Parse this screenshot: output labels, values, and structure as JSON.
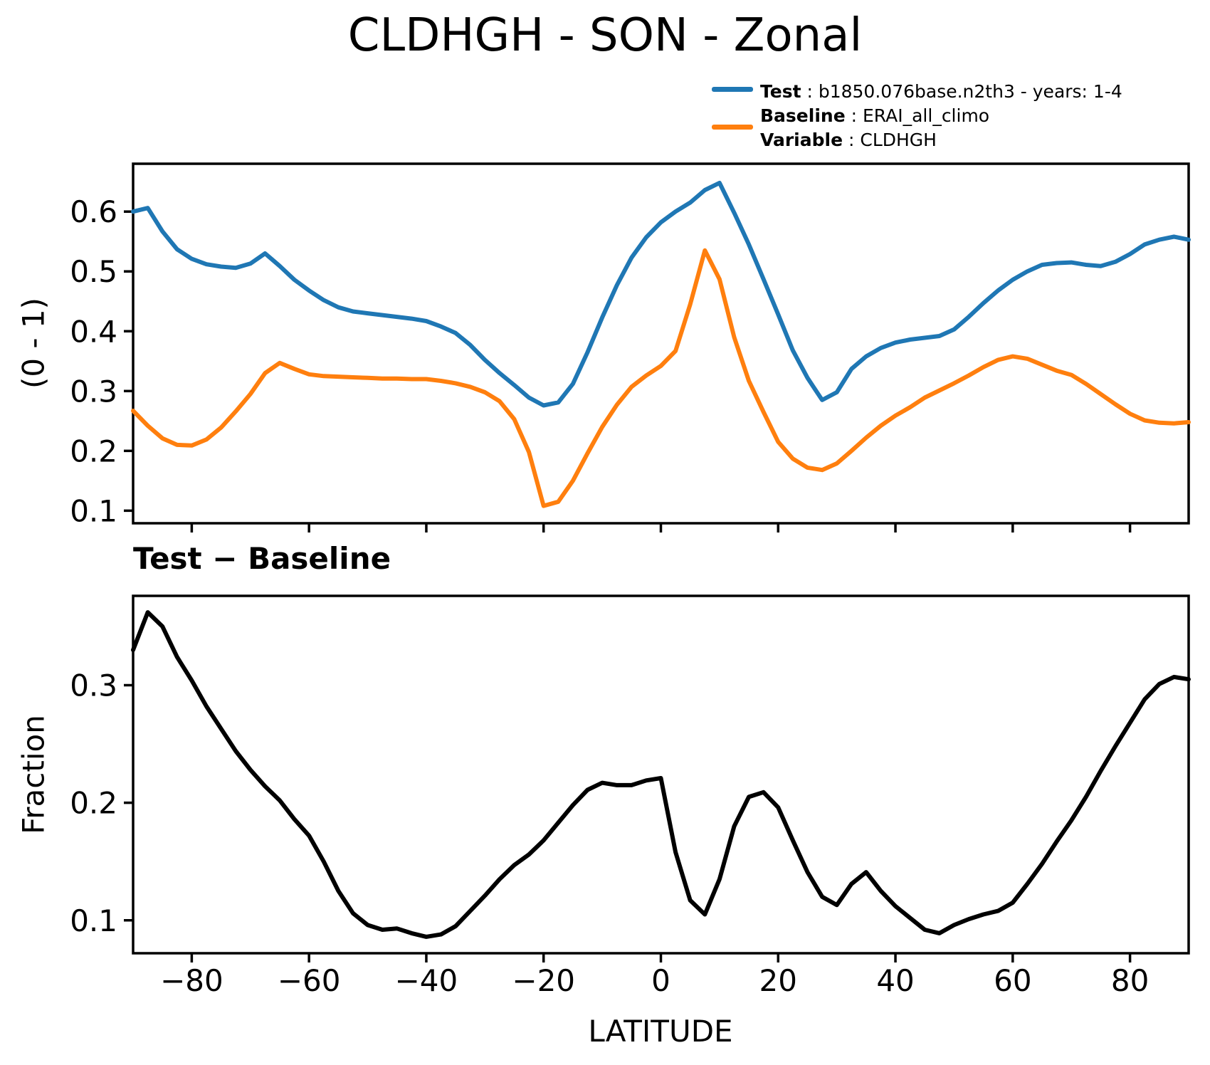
{
  "title": "CLDHGH - SON - Zonal",
  "subtitle": "Test − Baseline",
  "colors": {
    "test": "#1f77b4",
    "baseline": "#ff7f0e",
    "diff": "#000000",
    "axis": "#000000"
  },
  "legend": {
    "test_label": "Test",
    "test_value": " : b1850.076base.n2th3 - years: 1-4",
    "baseline_label": "Baseline",
    "baseline_value": " : ERAI_all_climo",
    "variable_label": "Variable",
    "variable_value": " : CLDHGH"
  },
  "axes": {
    "xlabel": "LATITUDE",
    "ylabel_top": "(0 - 1)",
    "ylabel_bottom": "Fraction"
  },
  "chart_data": [
    {
      "type": "line",
      "title": "CLDHGH - SON - Zonal",
      "xlabel": "",
      "ylabel": "(0 - 1)",
      "xlim": [
        -90,
        90
      ],
      "ylim": [
        0.079,
        0.68
      ],
      "grid": false,
      "legend_position": "upper right, outside axes",
      "xticks": [
        -80,
        -60,
        -40,
        -20,
        0,
        20,
        40,
        60,
        80
      ],
      "xtick_labels": [],
      "yticks": [
        0.1,
        0.2,
        0.3,
        0.4,
        0.5,
        0.6
      ],
      "ytick_labels": [
        "0.1",
        "0.2",
        "0.3",
        "0.4",
        "0.5",
        "0.6"
      ],
      "x": [
        -90,
        -87.5,
        -85,
        -82.5,
        -80,
        -77.5,
        -75,
        -72.5,
        -70,
        -67.5,
        -65,
        -62.5,
        -60,
        -57.5,
        -55,
        -52.5,
        -50,
        -47.5,
        -45,
        -42.5,
        -40,
        -37.5,
        -35,
        -32.5,
        -30,
        -27.5,
        -25,
        -22.5,
        -20,
        -17.5,
        -15,
        -12.5,
        -10,
        -7.5,
        -5,
        -2.5,
        0,
        2.5,
        5,
        7.5,
        10,
        12.5,
        15,
        17.5,
        20,
        22.5,
        25,
        27.5,
        30,
        32.5,
        35,
        37.5,
        40,
        42.5,
        45,
        47.5,
        50,
        52.5,
        55,
        57.5,
        60,
        62.5,
        65,
        67.5,
        70,
        72.5,
        75,
        77.5,
        80,
        82.5,
        85,
        87.5,
        90
      ],
      "series": [
        {
          "name": "Test : b1850.076base.n2th3 - years: 1-4",
          "color": "#1f77b4",
          "values": [
            0.6,
            0.606,
            0.567,
            0.537,
            0.521,
            0.512,
            0.508,
            0.506,
            0.513,
            0.53,
            0.509,
            0.486,
            0.468,
            0.452,
            0.44,
            0.433,
            0.43,
            0.427,
            0.424,
            0.421,
            0.417,
            0.408,
            0.397,
            0.377,
            0.352,
            0.33,
            0.31,
            0.289,
            0.276,
            0.281,
            0.312,
            0.365,
            0.423,
            0.477,
            0.523,
            0.557,
            0.582,
            0.6,
            0.615,
            0.636,
            0.648,
            0.598,
            0.545,
            0.487,
            0.428,
            0.368,
            0.322,
            0.285,
            0.298,
            0.337,
            0.358,
            0.372,
            0.381,
            0.386,
            0.389,
            0.392,
            0.403,
            0.424,
            0.447,
            0.468,
            0.486,
            0.5,
            0.511,
            0.514,
            0.515,
            0.511,
            0.509,
            0.516,
            0.529,
            0.545,
            0.553,
            0.558,
            0.553
          ]
        },
        {
          "name": "Baseline : ERAI_all_climo",
          "color": "#ff7f0e",
          "values": [
            0.267,
            0.242,
            0.221,
            0.21,
            0.209,
            0.219,
            0.239,
            0.266,
            0.295,
            0.33,
            0.347,
            0.337,
            0.328,
            0.325,
            0.324,
            0.323,
            0.322,
            0.321,
            0.321,
            0.32,
            0.32,
            0.317,
            0.313,
            0.307,
            0.298,
            0.283,
            0.253,
            0.198,
            0.108,
            0.115,
            0.15,
            0.196,
            0.24,
            0.277,
            0.307,
            0.326,
            0.342,
            0.367,
            0.445,
            0.535,
            0.487,
            0.39,
            0.317,
            0.265,
            0.215,
            0.187,
            0.172,
            0.168,
            0.179,
            0.2,
            0.222,
            0.242,
            0.259,
            0.273,
            0.289,
            0.301,
            0.313,
            0.326,
            0.34,
            0.352,
            0.358,
            0.354,
            0.344,
            0.334,
            0.327,
            0.312,
            0.295,
            0.278,
            0.262,
            0.251,
            0.247,
            0.246,
            0.248
          ]
        }
      ]
    },
    {
      "type": "line",
      "title": "Test − Baseline",
      "xlabel": "LATITUDE",
      "ylabel": "Fraction",
      "xlim": [
        -90,
        90
      ],
      "ylim": [
        0.072,
        0.376
      ],
      "grid": false,
      "xticks": [
        -80,
        -60,
        -40,
        -20,
        0,
        20,
        40,
        60,
        80
      ],
      "xtick_labels": [
        "−80",
        "−60",
        "−40",
        "−20",
        "0",
        "20",
        "40",
        "60",
        "80"
      ],
      "yticks": [
        0.1,
        0.2,
        0.3
      ],
      "ytick_labels": [
        "0.1",
        "0.2",
        "0.3"
      ],
      "x": [
        -90,
        -87.5,
        -85,
        -82.5,
        -80,
        -77.5,
        -75,
        -72.5,
        -70,
        -67.5,
        -65,
        -62.5,
        -60,
        -57.5,
        -55,
        -52.5,
        -50,
        -47.5,
        -45,
        -42.5,
        -40,
        -37.5,
        -35,
        -32.5,
        -30,
        -27.5,
        -25,
        -22.5,
        -20,
        -17.5,
        -15,
        -12.5,
        -10,
        -7.5,
        -5,
        -2.5,
        0,
        2.5,
        5,
        7.5,
        10,
        12.5,
        15,
        17.5,
        20,
        22.5,
        25,
        27.5,
        30,
        32.5,
        35,
        37.5,
        40,
        42.5,
        45,
        47.5,
        50,
        52.5,
        55,
        57.5,
        60,
        62.5,
        65,
        67.5,
        70,
        72.5,
        75,
        77.5,
        80,
        82.5,
        85,
        87.5,
        90
      ],
      "series": [
        {
          "name": "Test − Baseline",
          "color": "#000000",
          "values": [
            0.33,
            0.362,
            0.35,
            0.324,
            0.304,
            0.282,
            0.263,
            0.244,
            0.228,
            0.214,
            0.202,
            0.186,
            0.172,
            0.15,
            0.125,
            0.106,
            0.096,
            0.092,
            0.093,
            0.089,
            0.086,
            0.088,
            0.095,
            0.108,
            0.121,
            0.135,
            0.147,
            0.156,
            0.168,
            0.183,
            0.198,
            0.211,
            0.217,
            0.215,
            0.215,
            0.219,
            0.221,
            0.158,
            0.117,
            0.105,
            0.135,
            0.18,
            0.205,
            0.209,
            0.196,
            0.168,
            0.141,
            0.12,
            0.113,
            0.131,
            0.141,
            0.125,
            0.112,
            0.102,
            0.092,
            0.089,
            0.096,
            0.101,
            0.105,
            0.108,
            0.115,
            0.131,
            0.148,
            0.167,
            0.185,
            0.205,
            0.227,
            0.248,
            0.268,
            0.288,
            0.301,
            0.307,
            0.305
          ]
        }
      ]
    }
  ]
}
